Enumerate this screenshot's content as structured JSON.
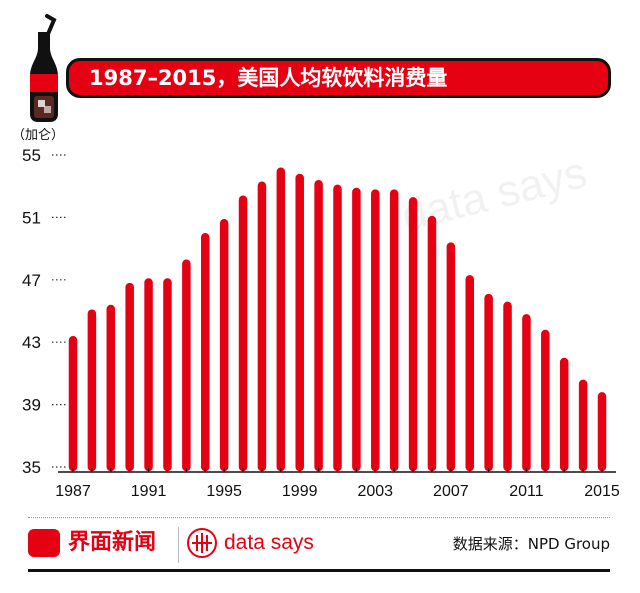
{
  "title": "1987–2015，美国人均软饮料消费量",
  "unit_label": "（加仑）",
  "watermark": "data says",
  "chart_data": {
    "type": "bar",
    "title": "1987–2015，美国人均软饮料消费量",
    "ylabel": "（加仑）",
    "xlabel": "",
    "ylim": [
      35,
      55
    ],
    "yticks": [
      35,
      39,
      43,
      47,
      51,
      55
    ],
    "xtick_labels": [
      "1987",
      "1991",
      "1995",
      "1999",
      "2003",
      "2007",
      "2011",
      "2015"
    ],
    "bar_color": "#e50012",
    "categories": [
      "1987",
      "1988",
      "1989",
      "1990",
      "1991",
      "1992",
      "1993",
      "1994",
      "1995",
      "1996",
      "1997",
      "1998",
      "1999",
      "2000",
      "2001",
      "2002",
      "2003",
      "2004",
      "2005",
      "2006",
      "2007",
      "2008",
      "2009",
      "2010",
      "2011",
      "2012",
      "2013",
      "2014",
      "2015"
    ],
    "values": [
      43.4,
      45.1,
      45.4,
      46.8,
      47.1,
      47.1,
      48.3,
      50.0,
      50.9,
      52.4,
      53.3,
      54.2,
      53.8,
      53.4,
      53.1,
      52.9,
      52.8,
      52.8,
      52.3,
      51.1,
      49.4,
      47.3,
      46.1,
      45.6,
      44.8,
      43.8,
      42.0,
      40.6,
      39.8
    ]
  },
  "footer": {
    "brand": "界面新闻",
    "data_says": "data says",
    "source": "数据来源：NPD Group"
  },
  "colors": {
    "accent": "#e50012",
    "dark": "#111111"
  }
}
